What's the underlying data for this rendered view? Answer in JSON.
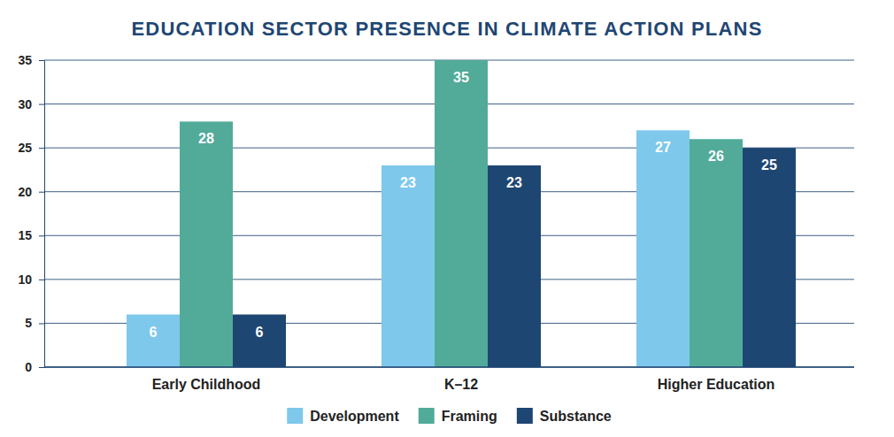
{
  "chart_data": {
    "type": "bar",
    "title": "EDUCATION SECTOR PRESENCE IN CLIMATE ACTION PLANS",
    "categories": [
      "Early Childhood",
      "K–12",
      "Higher Education"
    ],
    "series": [
      {
        "name": "Development",
        "color": "#7ec8ec",
        "values": [
          6,
          23,
          27
        ]
      },
      {
        "name": "Framing",
        "color": "#52ab99",
        "values": [
          28,
          35,
          26
        ]
      },
      {
        "name": "Substance",
        "color": "#1e4673",
        "values": [
          6,
          23,
          25
        ]
      }
    ],
    "ylim": [
      0,
      35
    ],
    "yticks": [
      0,
      5,
      10,
      15,
      20,
      25,
      30,
      35
    ],
    "grid": true,
    "legend": "bottom",
    "data_labels": true
  }
}
